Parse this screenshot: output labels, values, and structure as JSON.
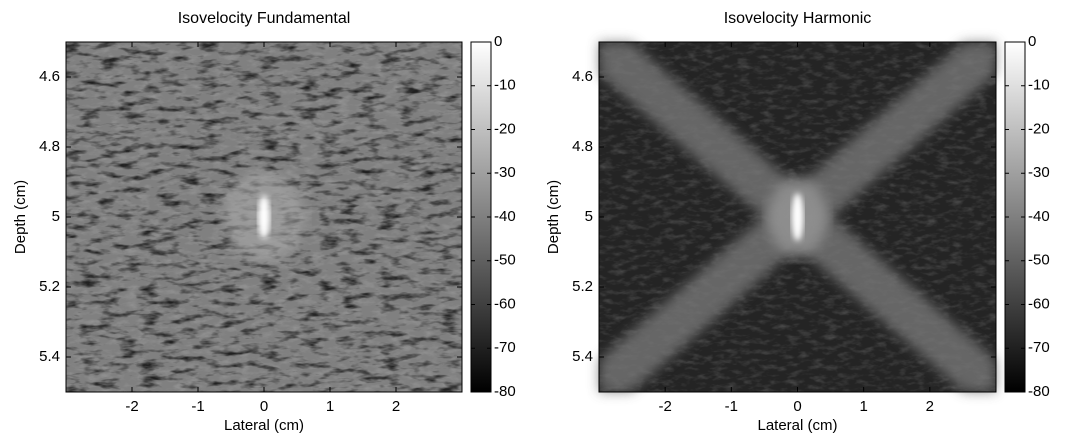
{
  "chart_data": [
    {
      "type": "heatmap",
      "title": "Isovelocity Fundamental",
      "xlabel": "Lateral (cm)",
      "ylabel": "Depth (cm)",
      "xlim": [
        -3,
        3
      ],
      "xticks": [
        -2,
        -1,
        0,
        1,
        2
      ],
      "ylim": [
        4.5,
        5.5
      ],
      "yticks": [
        4.6,
        4.8,
        5,
        5.2,
        5.4
      ],
      "y_inverted": true,
      "colormap": "gray",
      "colorbar": {
        "clim": [
          -80,
          0
        ],
        "ticks": [
          0,
          -10,
          -20,
          -30,
          -40,
          -50,
          -60,
          -70,
          -80
        ]
      }
    },
    {
      "type": "heatmap",
      "title": "Isovelocity Harmonic",
      "xlabel": "Lateral (cm)",
      "ylabel": "Depth (cm)",
      "xlim": [
        -3,
        3
      ],
      "xticks": [
        -2,
        -1,
        0,
        1,
        2
      ],
      "ylim": [
        4.5,
        5.5
      ],
      "yticks": [
        4.6,
        4.8,
        5,
        5.2,
        5.4
      ],
      "y_inverted": true,
      "colormap": "gray",
      "colorbar": {
        "clim": [
          -80,
          0
        ],
        "ticks": [
          0,
          -10,
          -20,
          -30,
          -40,
          -50,
          -60,
          -70,
          -80
        ]
      }
    }
  ]
}
